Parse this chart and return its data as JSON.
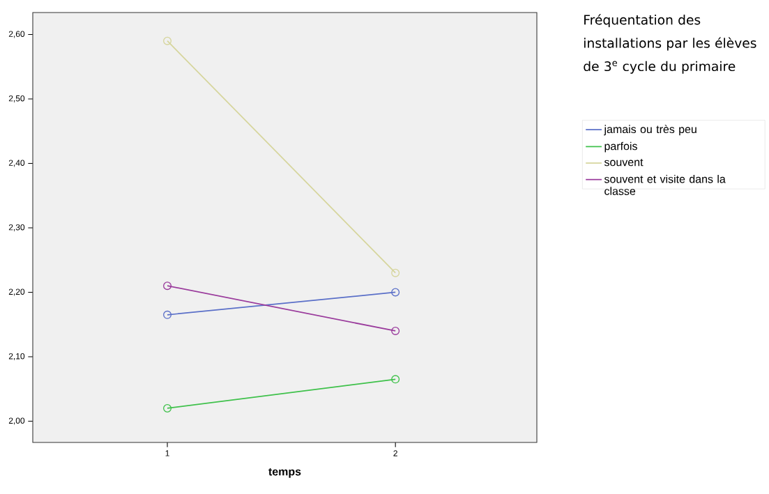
{
  "chart_data": {
    "type": "line",
    "xlabel": "temps",
    "legend_title": "Fréquentation des installations par les élèves de 3$^{e}$ cycle du primaire",
    "x": [
      1,
      2
    ],
    "xlim": [
      0.41,
      2.62
    ],
    "xticks": [
      1,
      2
    ],
    "ylim": [
      1.967,
      2.634
    ],
    "yticks": [
      {
        "value": 2.0,
        "label": "2,00"
      },
      {
        "value": 2.1,
        "label": "2,10"
      },
      {
        "value": 2.2,
        "label": "2,20"
      },
      {
        "value": 2.3,
        "label": "2,30"
      },
      {
        "value": 2.4,
        "label": "2,40"
      },
      {
        "value": 2.5,
        "label": "2,50"
      },
      {
        "value": 2.6,
        "label": "2,60"
      }
    ],
    "series": [
      {
        "name": "jamais ou très peu",
        "color": "#5a6fc8",
        "values": [
          2.165,
          2.2
        ]
      },
      {
        "name": "parfois",
        "color": "#3ec14a",
        "values": [
          2.02,
          2.065
        ]
      },
      {
        "name": "souvent",
        "color": "#d6d59c",
        "values": [
          2.59,
          2.23
        ]
      },
      {
        "name": "souvent et visite dans la classe",
        "color": "#9a3b9c",
        "values": [
          2.21,
          2.14
        ]
      }
    ],
    "marker": "circle",
    "line_style": "solid",
    "legend": "right",
    "grid": false
  }
}
